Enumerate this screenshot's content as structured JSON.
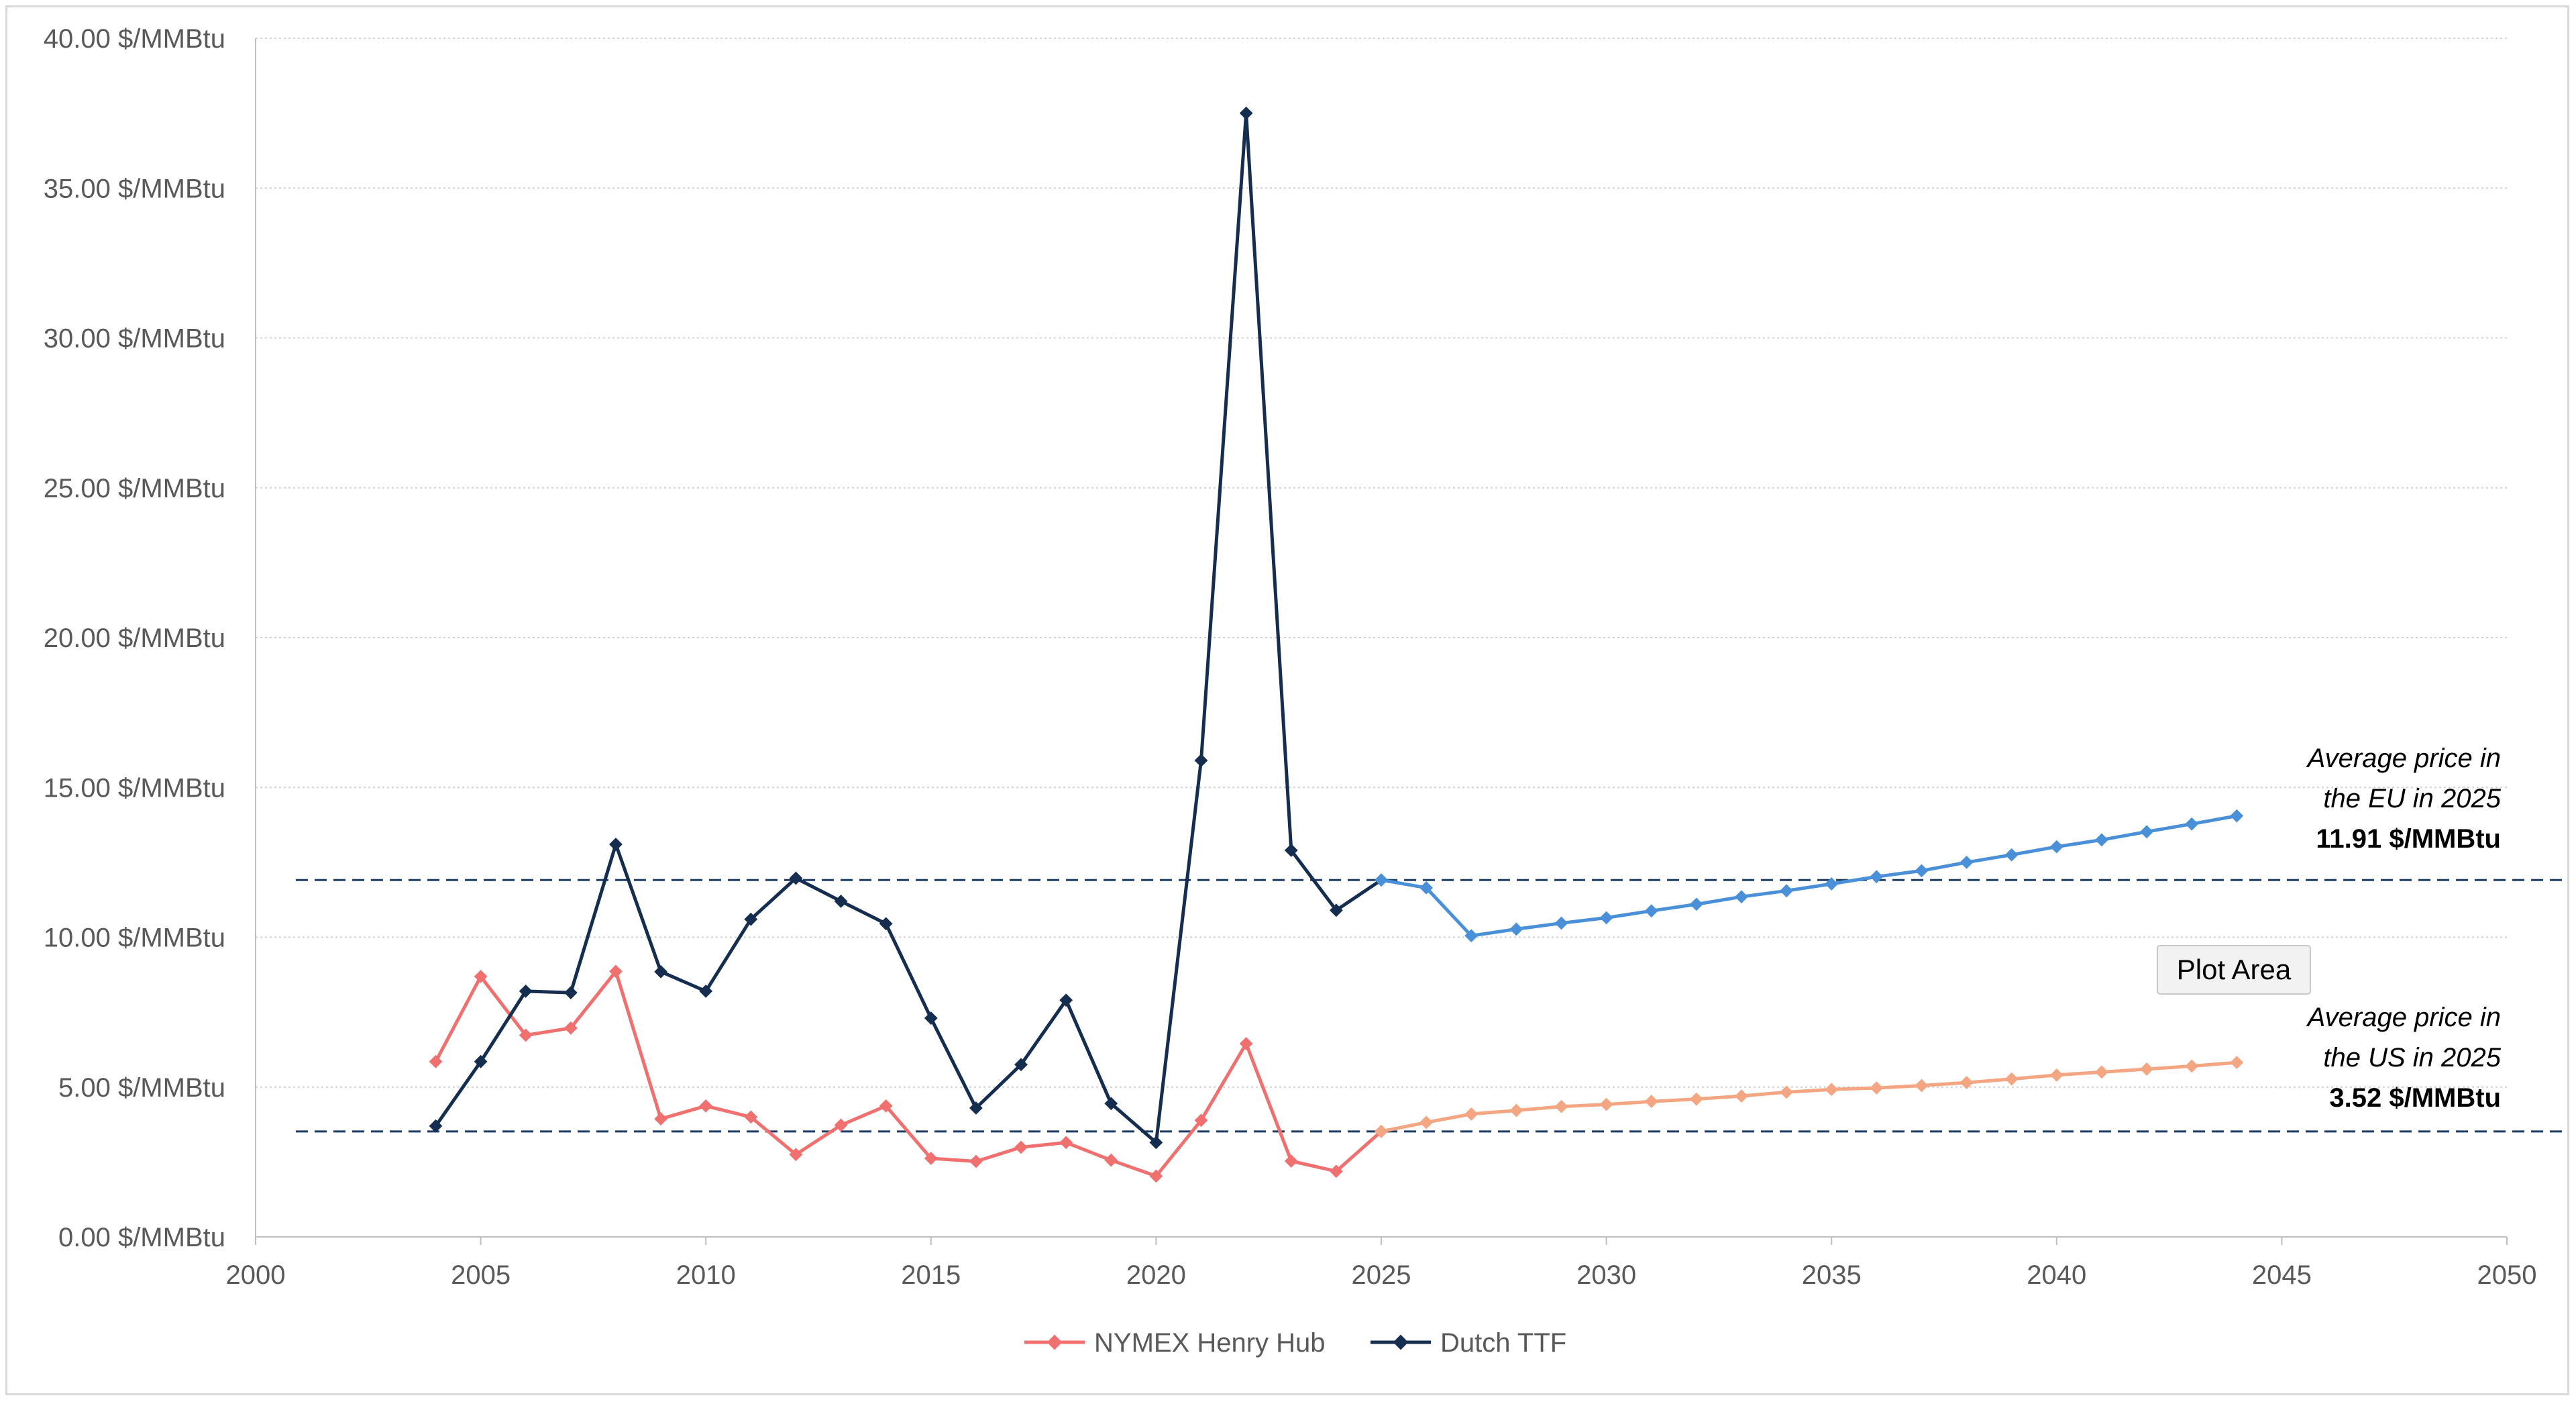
{
  "chart_data": {
    "type": "line",
    "title": "",
    "xlabel": "",
    "ylabel": "",
    "xlim": [
      2000,
      2050
    ],
    "ylim": [
      0,
      40
    ],
    "x_ticks": [
      2000,
      2005,
      2010,
      2015,
      2020,
      2025,
      2030,
      2035,
      2040,
      2045,
      2050
    ],
    "x_tick_labels": [
      "2000",
      "2005",
      "2010",
      "2015",
      "2020",
      "2025",
      "2030",
      "2035",
      "2040",
      "2045",
      "2050"
    ],
    "y_ticks": [
      0,
      5,
      10,
      15,
      20,
      25,
      30,
      35,
      40
    ],
    "y_tick_labels": [
      "0.00 $/MMBtu",
      "5.00 $/MMBtu",
      "10.00 $/MMBtu",
      "15.00 $/MMBtu",
      "20.00 $/MMBtu",
      "25.00 $/MMBtu",
      "30.00 $/MMBtu",
      "35.00 $/MMBtu",
      "40.00 $/MMBtu"
    ],
    "grid": "horizontal dotted",
    "legend_position": "bottom",
    "series": [
      {
        "name": "NYMEX Henry Hub",
        "color": "#f07070",
        "x": [
          2004,
          2005,
          2006,
          2007,
          2008,
          2009,
          2010,
          2011,
          2012,
          2013,
          2014,
          2015,
          2016,
          2017,
          2018,
          2019,
          2020,
          2021,
          2022,
          2023,
          2024,
          2025
        ],
        "values": [
          5.85,
          8.69,
          6.73,
          6.97,
          8.86,
          3.94,
          4.37,
          4.0,
          2.75,
          3.73,
          4.37,
          2.62,
          2.52,
          2.99,
          3.15,
          2.56,
          2.03,
          3.89,
          6.45,
          2.53,
          2.19,
          3.52
        ]
      },
      {
        "name": "Dutch TTF",
        "color": "#152d4f",
        "x": [
          2004,
          2005,
          2006,
          2007,
          2008,
          2009,
          2010,
          2011,
          2012,
          2013,
          2014,
          2015,
          2016,
          2017,
          2018,
          2019,
          2020,
          2021,
          2022,
          2023,
          2024,
          2025
        ],
        "values": [
          3.7,
          5.85,
          8.2,
          8.15,
          13.1,
          8.85,
          8.2,
          10.6,
          11.97,
          11.2,
          10.45,
          7.3,
          4.3,
          5.75,
          7.9,
          4.45,
          3.15,
          15.9,
          37.5,
          12.9,
          10.9,
          11.91
        ]
      },
      {
        "color": "#f4a582",
        "x": [
          2025,
          2026,
          2027,
          2028,
          2029,
          2030,
          2031,
          2032,
          2033,
          2034,
          2035,
          2036,
          2037,
          2038,
          2039,
          2040,
          2041,
          2042,
          2043,
          2044
        ],
        "values": [
          3.52,
          3.82,
          4.1,
          4.22,
          4.35,
          4.42,
          4.52,
          4.6,
          4.7,
          4.83,
          4.92,
          4.97,
          5.05,
          5.15,
          5.27,
          5.4,
          5.5,
          5.6,
          5.7,
          5.82
        ]
      },
      {
        "color": "#4a90d9",
        "x": [
          2025,
          2026,
          2027,
          2028,
          2029,
          2030,
          2031,
          2032,
          2033,
          2034,
          2035,
          2036,
          2037,
          2038,
          2039,
          2040,
          2041,
          2042,
          2043,
          2044
        ],
        "values": [
          11.91,
          11.65,
          10.05,
          10.27,
          10.47,
          10.65,
          10.88,
          11.1,
          11.35,
          11.55,
          11.78,
          12.02,
          12.22,
          12.5,
          12.75,
          13.02,
          13.25,
          13.52,
          13.78,
          14.05
        ]
      }
    ],
    "reference_lines": [
      {
        "y": 11.91,
        "style": "dashed",
        "color": "#1f3c66"
      },
      {
        "y": 3.52,
        "style": "dashed",
        "color": "#1f3c66"
      }
    ],
    "annotations": {
      "eu": {
        "line1": "Average price in",
        "line2": "the EU in 2025",
        "value": "11.91 $/MMBtu"
      },
      "us": {
        "line1": "Average price in",
        "line2": "the US in 2025",
        "value": "3.52 $/MMBtu"
      }
    },
    "tooltip": "Plot Area"
  }
}
